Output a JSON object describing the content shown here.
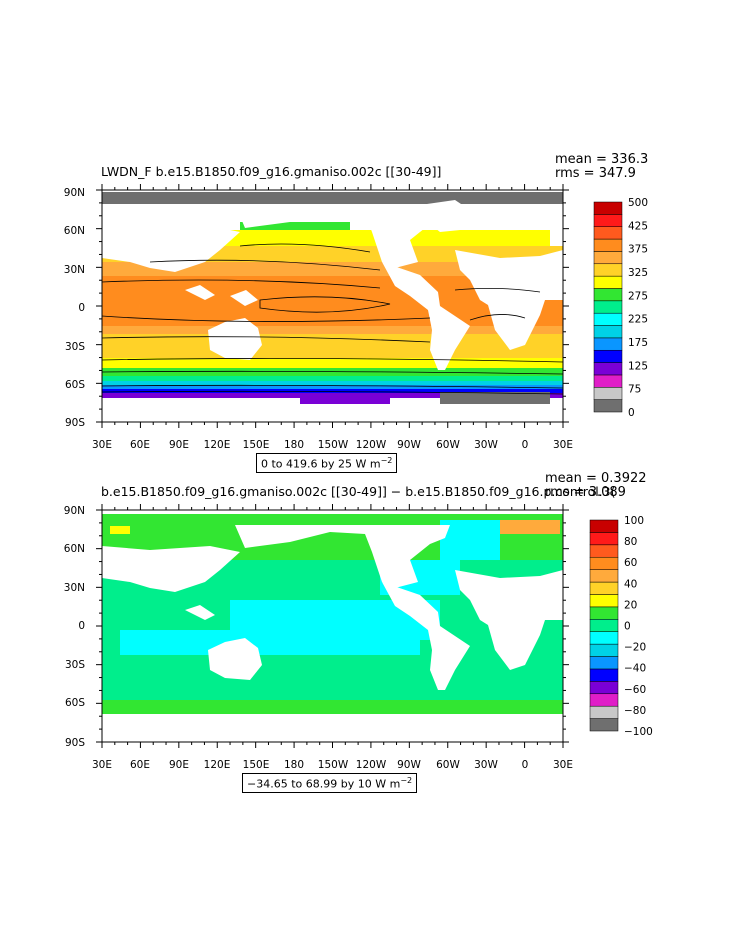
{
  "panel1": {
    "title": "LWDN_F  b.e15.B1850.f09_g16.gmaniso.002c  [[30-49]]",
    "mean": "mean = 336.3",
    "rms": "rms = 347.9",
    "info": "0 to 419.6 by 25  W m",
    "info_sup": "−2",
    "colorbar": {
      "colors": [
        "#6f6f6f",
        "#c8c8c8",
        "#e01ec8",
        "#7a00d6",
        "#0000ff",
        "#0a96ff",
        "#00d2e6",
        "#00ffff",
        "#00ee8c",
        "#32e632",
        "#ffff00",
        "#ffd228",
        "#ffaa3c",
        "#ff8c1e",
        "#ff5a1e",
        "#ff1a1a",
        "#c80000"
      ],
      "labels": [
        "0",
        "75",
        "125",
        "175",
        "225",
        "275",
        "325",
        "375",
        "425",
        "500"
      ]
    }
  },
  "panel2": {
    "title": "b.e15.B1850.f09_g16.gmaniso.002c  [[30-49]]  −  b.e15.B1850.f09_g16.p.control.3(",
    "mean": "mean = 0.3922",
    "rms": "rms = 3.089",
    "info": "−34.65 to 68.99 by 10  W m",
    "info_sup": "−2",
    "colorbar": {
      "colors": [
        "#6f6f6f",
        "#c8c8c8",
        "#e01ec8",
        "#7a00d6",
        "#0000ff",
        "#0a96ff",
        "#00d2e6",
        "#00ffff",
        "#00ee8c",
        "#32e632",
        "#ffff00",
        "#ffd228",
        "#ffaa3c",
        "#ff8c1e",
        "#ff5a1e",
        "#ff1a1a",
        "#c80000"
      ],
      "labels": [
        "−100",
        "−80",
        "−60",
        "−40",
        "−20",
        "0",
        "20",
        "40",
        "60",
        "80",
        "100"
      ]
    }
  },
  "axes": {
    "lat_labels": [
      "90N",
      "60N",
      "30N",
      "0",
      "30S",
      "60S",
      "90S"
    ],
    "lon_labels": [
      "30E",
      "60E",
      "90E",
      "120E",
      "150E",
      "180",
      "150W",
      "120W",
      "90W",
      "60W",
      "30W",
      "0",
      "30E"
    ]
  }
}
